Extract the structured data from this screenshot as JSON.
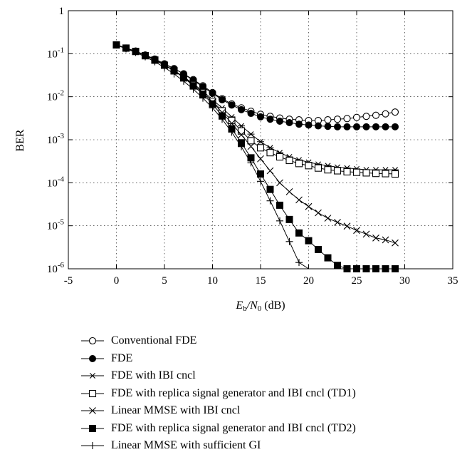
{
  "chart_data": {
    "type": "line",
    "title": "",
    "xlabel": "E_b/N_0 (dB)",
    "xlabel_parts": {
      "e": "E",
      "b": "b",
      "slash": "/N",
      "zero": "0",
      "unit": " (dB)"
    },
    "ylabel": "BER",
    "xlim": [
      -5,
      35
    ],
    "ylim": [
      1e-06,
      1
    ],
    "yscale": "log",
    "grid": true,
    "x_ticks": [
      "-5",
      "0",
      "5",
      "10",
      "15",
      "20",
      "25",
      "30",
      "35"
    ],
    "x_tick_values": [
      -5,
      0,
      5,
      10,
      15,
      20,
      25,
      30,
      35
    ],
    "y_ticks": [
      {
        "value": 1,
        "base": "1",
        "exp": ""
      },
      {
        "value": 0.1,
        "base": "10",
        "exp": "-1"
      },
      {
        "value": 0.01,
        "base": "10",
        "exp": "-2"
      },
      {
        "value": 0.001,
        "base": "10",
        "exp": "-3"
      },
      {
        "value": 0.0001,
        "base": "10",
        "exp": "-4"
      },
      {
        "value": 1e-05,
        "base": "10",
        "exp": "-5"
      },
      {
        "value": 1e-06,
        "base": "10",
        "exp": "-6"
      }
    ],
    "legend_position": "below",
    "series": [
      {
        "name": "Conventional FDE",
        "marker": "circle-open",
        "x": [
          0,
          1,
          2,
          3,
          4,
          5,
          6,
          7,
          8,
          9,
          10,
          11,
          12,
          13,
          14,
          15,
          16,
          17,
          18,
          19,
          20,
          21,
          22,
          23,
          24,
          25,
          26,
          27,
          28,
          29
        ],
        "y": [
          0.16,
          0.135,
          0.115,
          0.093,
          0.075,
          0.058,
          0.045,
          0.034,
          0.025,
          0.018,
          0.0125,
          0.009,
          0.0068,
          0.0055,
          0.0046,
          0.0039,
          0.0035,
          0.0032,
          0.003,
          0.0029,
          0.0028,
          0.0028,
          0.0029,
          0.003,
          0.0031,
          0.0033,
          0.0035,
          0.0037,
          0.004,
          0.0044
        ]
      },
      {
        "name": "FDE",
        "marker": "circle-filled",
        "x": [
          0,
          1,
          2,
          3,
          4,
          5,
          6,
          7,
          8,
          9,
          10,
          11,
          12,
          13,
          14,
          15,
          16,
          17,
          18,
          19,
          20,
          21,
          22,
          23,
          24,
          25,
          26,
          27,
          28,
          29
        ],
        "y": [
          0.16,
          0.135,
          0.115,
          0.093,
          0.075,
          0.058,
          0.045,
          0.034,
          0.024,
          0.017,
          0.012,
          0.0085,
          0.0064,
          0.005,
          0.0041,
          0.0034,
          0.003,
          0.0027,
          0.0025,
          0.0023,
          0.0022,
          0.0021,
          0.00205,
          0.002,
          0.002,
          0.002,
          0.002,
          0.002,
          0.002,
          0.002
        ]
      },
      {
        "name": "FDE with IBI cncl",
        "marker": "asterisk",
        "x": [
          0,
          1,
          2,
          3,
          4,
          5,
          6,
          7,
          8,
          9,
          10,
          11,
          12,
          13,
          14,
          15,
          16,
          17,
          18,
          19,
          20,
          21,
          22,
          23,
          24,
          25,
          26,
          27,
          28,
          29
        ],
        "y": [
          0.16,
          0.135,
          0.113,
          0.09,
          0.072,
          0.055,
          0.041,
          0.029,
          0.02,
          0.0135,
          0.0085,
          0.0055,
          0.0034,
          0.0021,
          0.00135,
          0.0009,
          0.00065,
          0.0005,
          0.0004,
          0.00034,
          0.0003,
          0.00027,
          0.00025,
          0.00023,
          0.00022,
          0.00021,
          0.0002,
          0.0002,
          0.0002,
          0.0002
        ]
      },
      {
        "name": "FDE with replica signal generator and IBI cncl (TD1)",
        "marker": "square-open",
        "x": [
          0,
          1,
          2,
          3,
          4,
          5,
          6,
          7,
          8,
          9,
          10,
          11,
          12,
          13,
          14,
          15,
          16,
          17,
          18,
          19,
          20,
          21,
          22,
          23,
          24,
          25,
          26,
          27,
          28,
          29
        ],
        "y": [
          0.16,
          0.135,
          0.113,
          0.09,
          0.071,
          0.054,
          0.04,
          0.028,
          0.019,
          0.0125,
          0.0078,
          0.0047,
          0.0028,
          0.0016,
          0.00095,
          0.00065,
          0.0005,
          0.0004,
          0.00033,
          0.00028,
          0.00025,
          0.00022,
          0.0002,
          0.00019,
          0.00018,
          0.000175,
          0.00017,
          0.000165,
          0.000163,
          0.00016
        ]
      },
      {
        "name": "Linear MMSE with IBI cncl",
        "marker": "x",
        "x": [
          0,
          1,
          2,
          3,
          4,
          5,
          6,
          7,
          8,
          9,
          10,
          11,
          12,
          13,
          14,
          15,
          16,
          17,
          18,
          19,
          20,
          21,
          22,
          23,
          24,
          25,
          26,
          27,
          28,
          29
        ],
        "y": [
          0.16,
          0.135,
          0.113,
          0.09,
          0.071,
          0.054,
          0.04,
          0.028,
          0.019,
          0.0125,
          0.0075,
          0.0043,
          0.0024,
          0.0013,
          0.0007,
          0.00036,
          0.00019,
          0.0001,
          6.2e-05,
          4e-05,
          2.8e-05,
          2e-05,
          1.5e-05,
          1.2e-05,
          9.8e-06,
          7.8e-06,
          6.4e-06,
          5.2e-06,
          4.7e-06,
          4e-06
        ]
      },
      {
        "name": "FDE with replica signal generator and IBI cncl (TD2)",
        "marker": "square-filled",
        "x": [
          0,
          1,
          2,
          3,
          4,
          5,
          6,
          7,
          8,
          9,
          10,
          11,
          12,
          13,
          14,
          15,
          16,
          17,
          18,
          19,
          20,
          21,
          22,
          23,
          24,
          25,
          26,
          27,
          28,
          29
        ],
        "y": [
          0.16,
          0.135,
          0.113,
          0.09,
          0.071,
          0.054,
          0.04,
          0.028,
          0.018,
          0.0115,
          0.0068,
          0.0036,
          0.0018,
          0.00085,
          0.00038,
          0.00016,
          7e-05,
          3e-05,
          1.4e-05,
          6.8e-06,
          4.5e-06,
          2.8e-06,
          1.8e-06,
          1.2e-06,
          1e-06,
          1e-06,
          1e-06,
          1e-06,
          1e-06,
          1e-06
        ]
      },
      {
        "name": "Linear MMSE with sufficient GI",
        "marker": "plus",
        "x": [
          0,
          1,
          2,
          3,
          4,
          5,
          6,
          7,
          8,
          9,
          10,
          11,
          12,
          13,
          14,
          15,
          16,
          17,
          18,
          19,
          20
        ],
        "y": [
          0.16,
          0.13,
          0.107,
          0.085,
          0.065,
          0.048,
          0.034,
          0.023,
          0.015,
          0.0093,
          0.0055,
          0.003,
          0.0015,
          0.00069,
          0.00029,
          0.000108,
          3.8e-05,
          1.3e-05,
          4.3e-06,
          1.4e-06,
          9e-07
        ]
      }
    ]
  }
}
